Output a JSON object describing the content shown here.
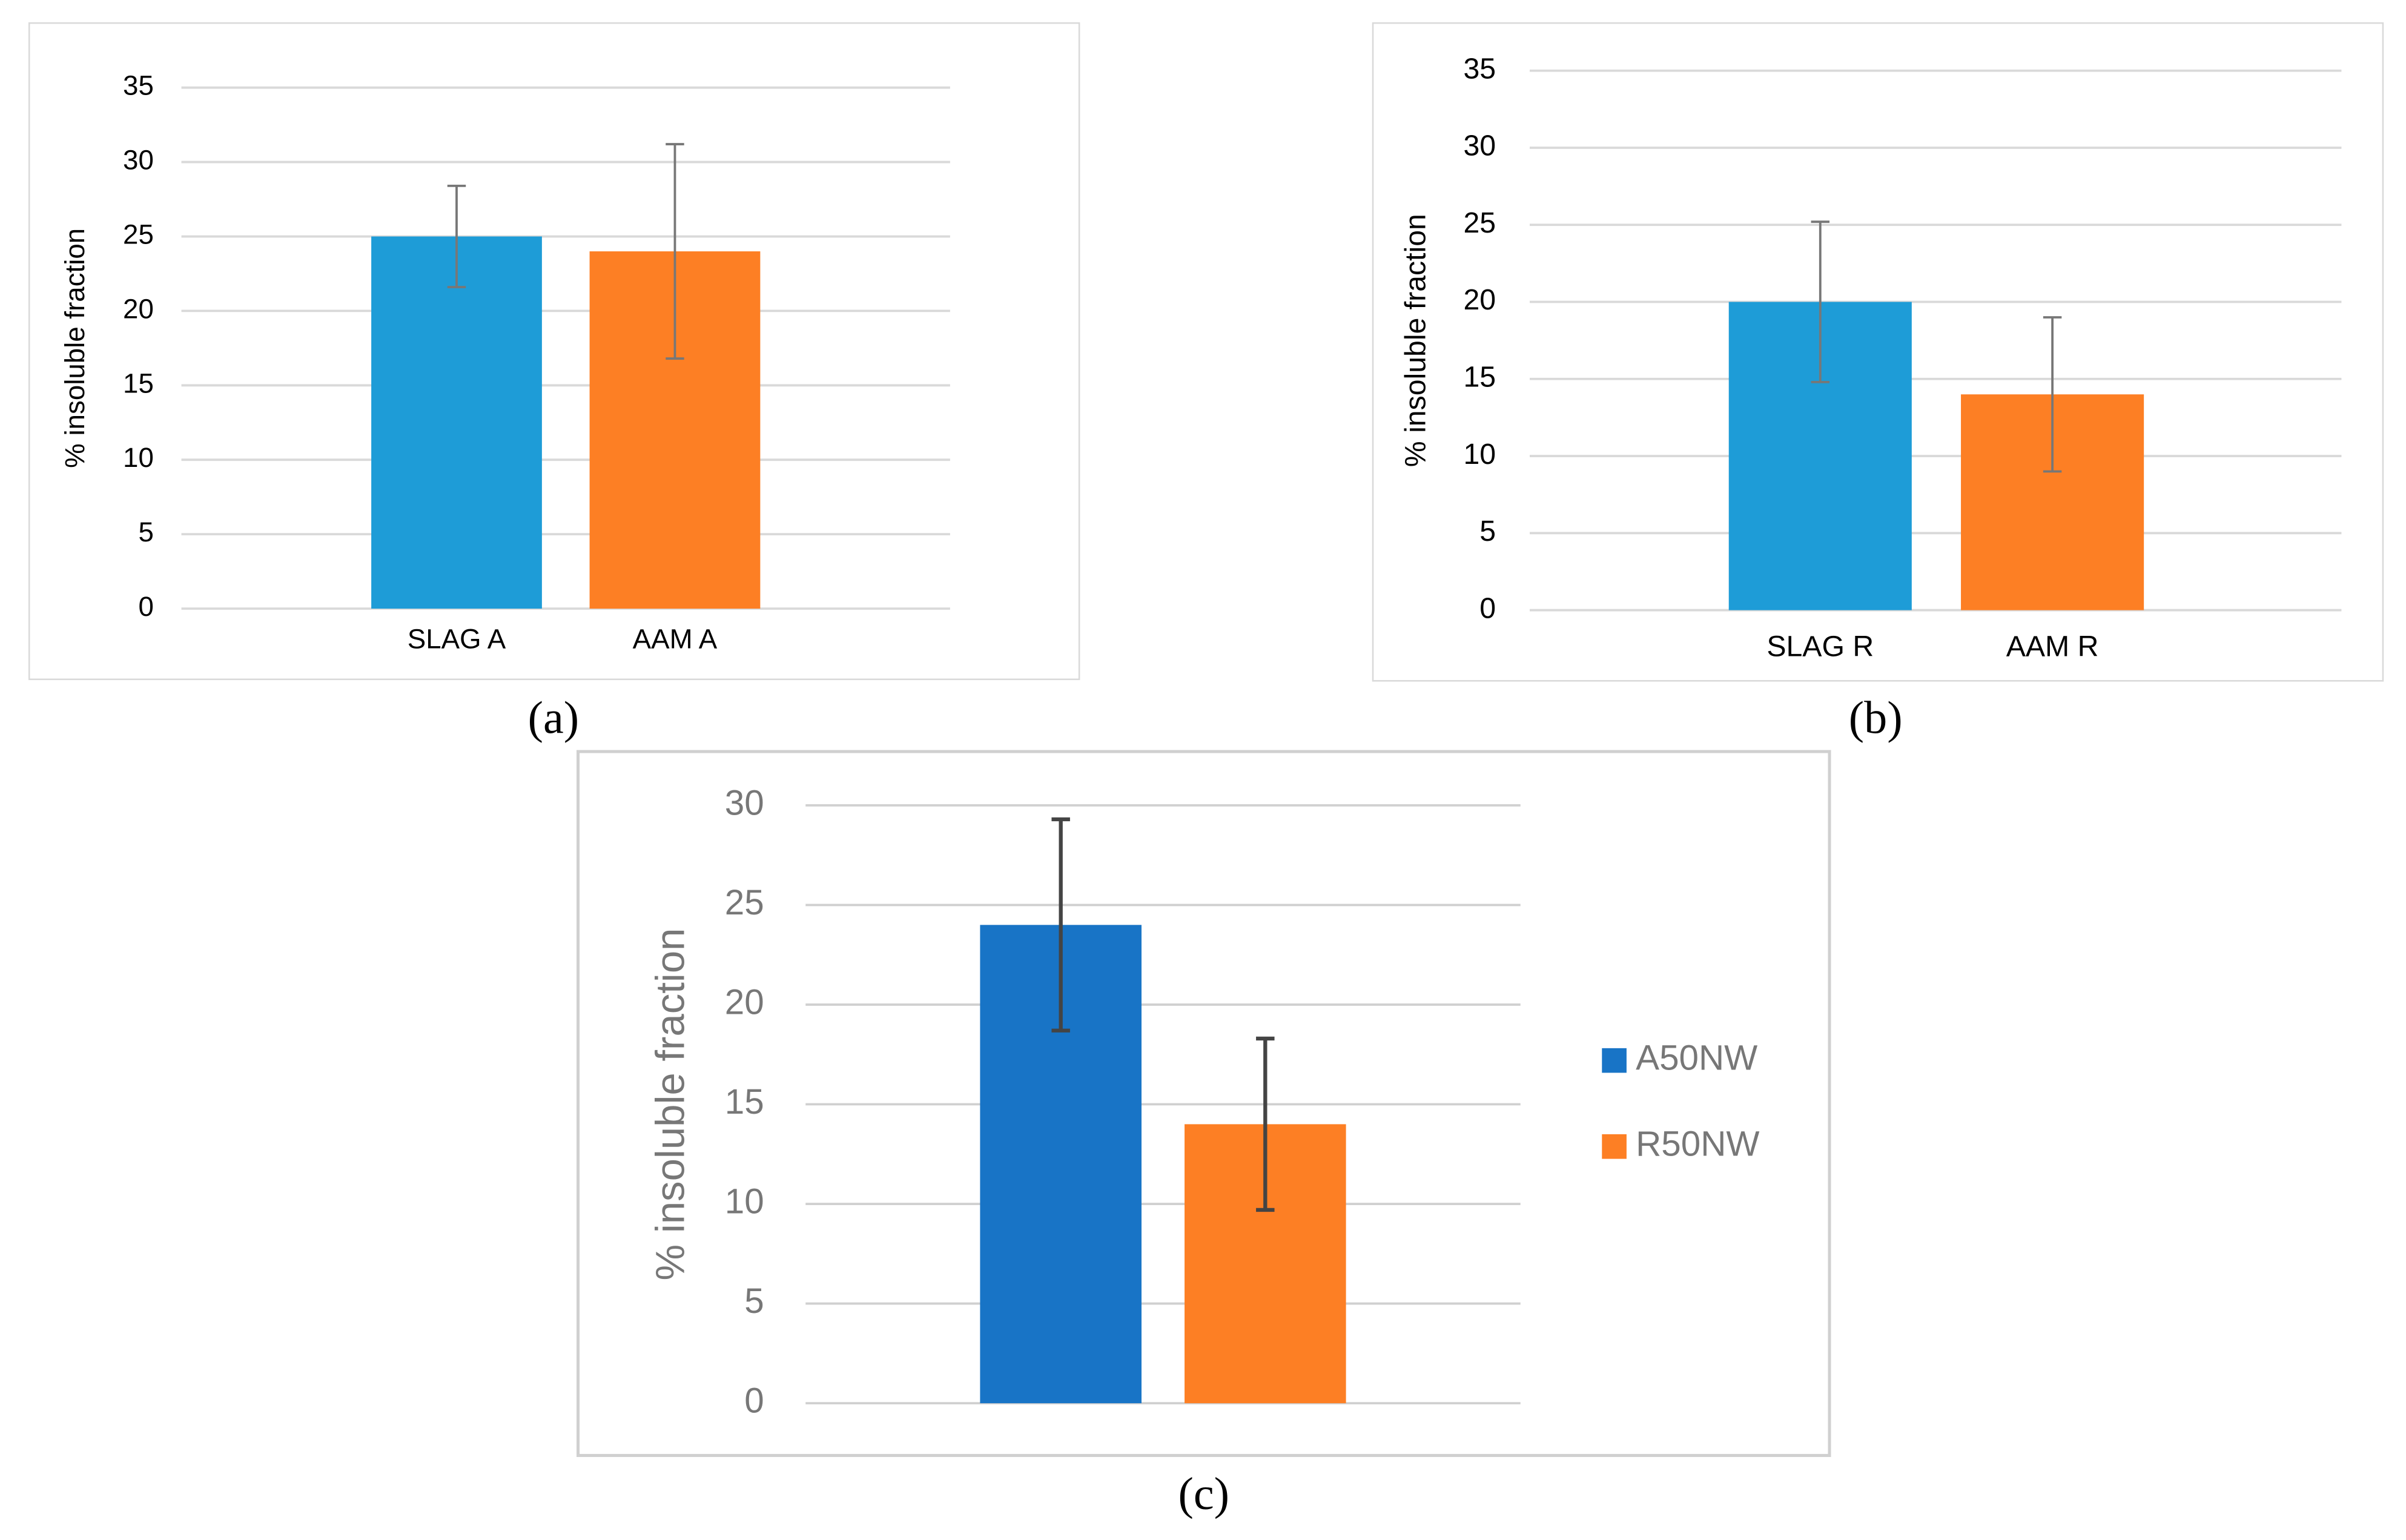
{
  "chart_data": [
    {
      "type": "bar",
      "caption": "(a)",
      "y_label": "% insoluble fraction",
      "categories": [
        "SLAG A",
        "AAM A"
      ],
      "series": [
        {
          "colors": [
            "#1e9cd7",
            "#fd7f24"
          ],
          "values": [
            25,
            24
          ],
          "errors": [
            3.4,
            7.2
          ]
        }
      ],
      "ylim": [
        0,
        35
      ],
      "yticks": [
        0,
        5,
        10,
        15,
        20,
        25,
        30,
        35
      ],
      "grid": true
    },
    {
      "type": "bar",
      "caption": "(b)",
      "y_label": "% insoluble fraction",
      "categories": [
        "SLAG R",
        "AAM R"
      ],
      "series": [
        {
          "colors": [
            "#1e9cd7",
            "#fd7f24"
          ],
          "values": [
            20,
            14
          ],
          "errors": [
            5.2,
            5
          ]
        }
      ],
      "ylim": [
        0,
        35
      ],
      "yticks": [
        0,
        5,
        10,
        15,
        20,
        25,
        30,
        35
      ],
      "grid": true
    },
    {
      "type": "bar",
      "caption": "(c)",
      "y_label": "% insoluble fraction",
      "series": [
        {
          "name": "A50NW",
          "color": "#1874c6",
          "values": [
            24
          ],
          "errors": [
            5.3
          ]
        },
        {
          "name": "R50NW",
          "color": "#fd7f24",
          "values": [
            14
          ],
          "errors": [
            4.3
          ]
        }
      ],
      "ylim": [
        0,
        30
      ],
      "yticks": [
        0,
        5,
        10,
        15,
        20,
        25,
        30
      ],
      "grid": true,
      "legend": "right"
    }
  ]
}
